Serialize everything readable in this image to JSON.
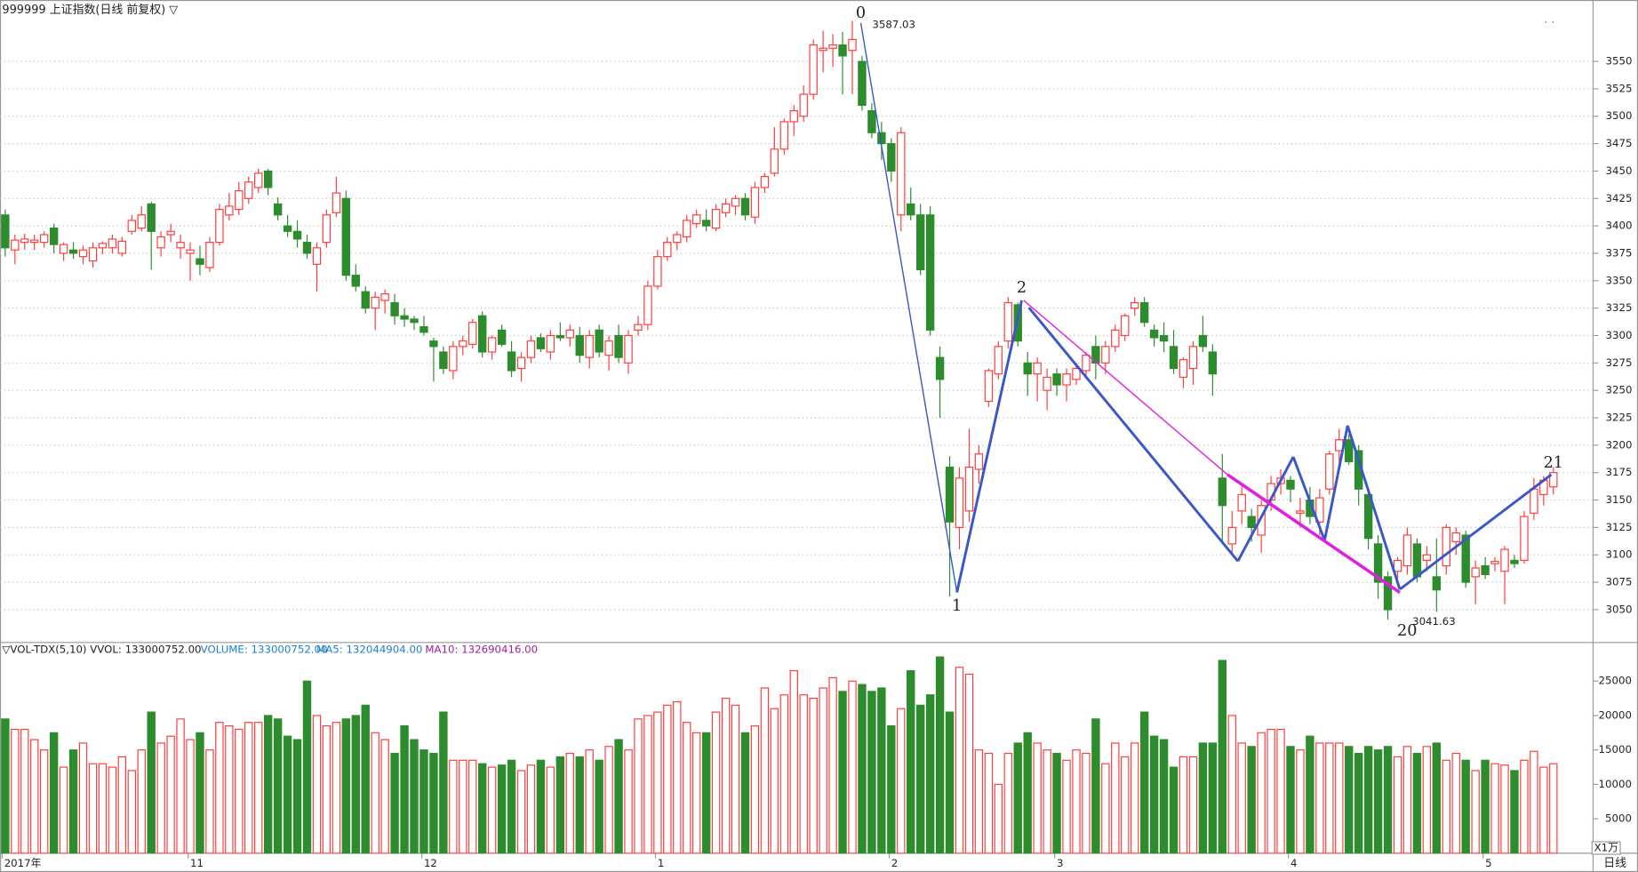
{
  "chart_data": [
    {
      "type": "candlestick",
      "title": "999999 上证指数(日线 前复权) ▽",
      "up_color": "#ff3b3b",
      "down_color": "#2d8c2d",
      "ylim": [
        3021,
        3606
      ],
      "yticks": [
        3050,
        3075,
        3100,
        3125,
        3150,
        3175,
        3200,
        3225,
        3250,
        3275,
        3300,
        3325,
        3350,
        3375,
        3400,
        3425,
        3450,
        3475,
        3500,
        3525,
        3550
      ],
      "grid": true,
      "annotations": {
        "wave_labels": [
          "0",
          "1",
          "2",
          "20",
          "21"
        ],
        "high": 3587.03,
        "low": 3041.63
      },
      "period_label": "日线",
      "categories": [
        "2017年",
        null,
        null,
        null,
        null,
        null,
        null,
        null,
        null,
        null,
        null,
        null,
        null,
        null,
        null,
        null,
        null,
        null,
        null,
        "11",
        null,
        null,
        null,
        null,
        null,
        null,
        null,
        null,
        null,
        null,
        null,
        null,
        null,
        null,
        null,
        null,
        null,
        null,
        null,
        null,
        null,
        null,
        null,
        "12",
        null,
        null,
        null,
        null,
        null,
        null,
        null,
        null,
        null,
        null,
        null,
        null,
        null,
        null,
        null,
        null,
        null,
        null,
        null,
        null,
        null,
        null,
        null,
        "1",
        null,
        null,
        null,
        null,
        null,
        null,
        null,
        null,
        null,
        null,
        null,
        null,
        null,
        null,
        null,
        null,
        null,
        null,
        null,
        null,
        null,
        null,
        null,
        "2",
        null,
        null,
        null,
        null,
        null,
        null,
        null,
        null,
        null,
        null,
        null,
        null,
        null,
        null,
        null,
        null,
        "3",
        null,
        null,
        null,
        null,
        null,
        null,
        null,
        null,
        null,
        null,
        null,
        null,
        null,
        null,
        null,
        null,
        null,
        null,
        null,
        null,
        null,
        null,
        null,
        "4",
        null,
        null,
        null,
        null,
        null,
        null,
        null,
        null,
        null,
        null,
        null,
        null,
        null,
        null,
        null,
        null,
        null,
        null,
        null,
        "5",
        null,
        null,
        null,
        null,
        null,
        null,
        null
      ],
      "values": [
        [
          3410,
          3415,
          3372,
          3380
        ],
        [
          3378,
          3392,
          3365,
          3387
        ],
        [
          3385,
          3393,
          3378,
          3388
        ],
        [
          3385,
          3392,
          3378,
          3387
        ],
        [
          3385,
          3395,
          3380,
          3392
        ],
        [
          3398,
          3402,
          3375,
          3383
        ],
        [
          3375,
          3385,
          3368,
          3383
        ],
        [
          3378,
          3385,
          3370,
          3375
        ],
        [
          3372,
          3382,
          3365,
          3378
        ],
        [
          3368,
          3385,
          3362,
          3380
        ],
        [
          3380,
          3386,
          3374,
          3384
        ],
        [
          3380,
          3392,
          3375,
          3388
        ],
        [
          3375,
          3390,
          3372,
          3386
        ],
        [
          3395,
          3410,
          3392,
          3405
        ],
        [
          3398,
          3418,
          3395,
          3410
        ],
        [
          3420,
          3422,
          3360,
          3395
        ],
        [
          3380,
          3395,
          3372,
          3390
        ],
        [
          3392,
          3402,
          3385,
          3395
        ],
        [
          3380,
          3392,
          3370,
          3385
        ],
        [
          3375,
          3385,
          3350,
          3378
        ],
        [
          3370,
          3382,
          3355,
          3365
        ],
        [
          3362,
          3390,
          3358,
          3385
        ],
        [
          3385,
          3420,
          3382,
          3415
        ],
        [
          3410,
          3430,
          3405,
          3418
        ],
        [
          3415,
          3440,
          3410,
          3432
        ],
        [
          3425,
          3445,
          3420,
          3440
        ],
        [
          3435,
          3452,
          3430,
          3448
        ],
        [
          3450,
          3452,
          3428,
          3435
        ],
        [
          3420,
          3426,
          3405,
          3410
        ],
        [
          3400,
          3410,
          3390,
          3395
        ],
        [
          3395,
          3405,
          3380,
          3388
        ],
        [
          3385,
          3392,
          3370,
          3375
        ],
        [
          3365,
          3385,
          3340,
          3380
        ],
        [
          3385,
          3415,
          3380,
          3410
        ],
        [
          3412,
          3445,
          3408,
          3430
        ],
        [
          3425,
          3432,
          3350,
          3355
        ],
        [
          3355,
          3365,
          3340,
          3345
        ],
        [
          3340,
          3345,
          3320,
          3325
        ],
        [
          3325,
          3340,
          3305,
          3335
        ],
        [
          3332,
          3342,
          3320,
          3338
        ],
        [
          3330,
          3338,
          3310,
          3318
        ],
        [
          3318,
          3325,
          3308,
          3315
        ],
        [
          3315,
          3318,
          3305,
          3312
        ],
        [
          3308,
          3318,
          3300,
          3303
        ],
        [
          3295,
          3298,
          3258,
          3290
        ],
        [
          3285,
          3290,
          3265,
          3270
        ],
        [
          3268,
          3295,
          3260,
          3290
        ],
        [
          3290,
          3300,
          3282,
          3295
        ],
        [
          3292,
          3315,
          3288,
          3312
        ],
        [
          3318,
          3322,
          3280,
          3285
        ],
        [
          3285,
          3300,
          3278,
          3298
        ],
        [
          3305,
          3310,
          3290,
          3292
        ],
        [
          3285,
          3295,
          3262,
          3268
        ],
        [
          3270,
          3285,
          3258,
          3280
        ],
        [
          3280,
          3300,
          3275,
          3295
        ],
        [
          3298,
          3302,
          3285,
          3288
        ],
        [
          3285,
          3305,
          3278,
          3300
        ],
        [
          3300,
          3312,
          3295,
          3298
        ],
        [
          3298,
          3310,
          3290,
          3305
        ],
        [
          3300,
          3308,
          3275,
          3282
        ],
        [
          3280,
          3305,
          3270,
          3300
        ],
        [
          3305,
          3310,
          3280,
          3285
        ],
        [
          3282,
          3300,
          3268,
          3295
        ],
        [
          3300,
          3310,
          3275,
          3280
        ],
        [
          3275,
          3305,
          3265,
          3300
        ],
        [
          3305,
          3318,
          3300,
          3310
        ],
        [
          3310,
          3350,
          3305,
          3345
        ],
        [
          3345,
          3378,
          3342,
          3372
        ],
        [
          3372,
          3390,
          3368,
          3385
        ],
        [
          3385,
          3395,
          3378,
          3392
        ],
        [
          3390,
          3410,
          3385,
          3405
        ],
        [
          3402,
          3415,
          3398,
          3410
        ],
        [
          3405,
          3415,
          3395,
          3400
        ],
        [
          3398,
          3420,
          3395,
          3415
        ],
        [
          3412,
          3425,
          3408,
          3420
        ],
        [
          3418,
          3428,
          3410,
          3425
        ],
        [
          3425,
          3430,
          3405,
          3410
        ],
        [
          3408,
          3440,
          3402,
          3435
        ],
        [
          3435,
          3448,
          3430,
          3445
        ],
        [
          3448,
          3490,
          3445,
          3470
        ],
        [
          3470,
          3498,
          3465,
          3495
        ],
        [
          3495,
          3510,
          3482,
          3505
        ],
        [
          3500,
          3528,
          3495,
          3520
        ],
        [
          3520,
          3570,
          3515,
          3565
        ],
        [
          3560,
          3578,
          3540,
          3562
        ],
        [
          3562,
          3575,
          3545,
          3565
        ],
        [
          3565,
          3577,
          3520,
          3555
        ],
        [
          3560,
          3587,
          3520,
          3570
        ],
        [
          3550,
          3555,
          3505,
          3510
        ],
        [
          3505,
          3512,
          3480,
          3485
        ],
        [
          3485,
          3495,
          3460,
          3475
        ],
        [
          3475,
          3480,
          3440,
          3450
        ],
        [
          3410,
          3490,
          3395,
          3485
        ],
        [
          3420,
          3435,
          3405,
          3410
        ],
        [
          3410,
          3420,
          3355,
          3360
        ],
        [
          3410,
          3418,
          3300,
          3305
        ],
        [
          3280,
          3290,
          3225,
          3260
        ],
        [
          3180,
          3190,
          3062,
          3130
        ],
        [
          3125,
          3180,
          3105,
          3170
        ],
        [
          3140,
          3215,
          3130,
          3180
        ],
        [
          3178,
          3200,
          3165,
          3192
        ],
        [
          3240,
          3270,
          3235,
          3268
        ],
        [
          3265,
          3295,
          3260,
          3290
        ],
        [
          3295,
          3335,
          3288,
          3330
        ],
        [
          3328,
          3330,
          3290,
          3295
        ],
        [
          3275,
          3285,
          3245,
          3265
        ],
        [
          3265,
          3280,
          3240,
          3275
        ],
        [
          3250,
          3270,
          3232,
          3262
        ],
        [
          3265,
          3270,
          3245,
          3255
        ],
        [
          3255,
          3270,
          3240,
          3265
        ],
        [
          3260,
          3275,
          3255,
          3270
        ],
        [
          3268,
          3285,
          3262,
          3282
        ],
        [
          3290,
          3300,
          3260,
          3275
        ],
        [
          3275,
          3295,
          3265,
          3290
        ],
        [
          3290,
          3310,
          3285,
          3305
        ],
        [
          3300,
          3320,
          3295,
          3318
        ],
        [
          3325,
          3335,
          3318,
          3330
        ],
        [
          3330,
          3335,
          3308,
          3312
        ],
        [
          3305,
          3310,
          3290,
          3298
        ],
        [
          3300,
          3312,
          3285,
          3295
        ],
        [
          3290,
          3305,
          3265,
          3270
        ],
        [
          3262,
          3280,
          3252,
          3278
        ],
        [
          3270,
          3295,
          3255,
          3290
        ],
        [
          3300,
          3318,
          3285,
          3290
        ],
        [
          3285,
          3292,
          3245,
          3265
        ],
        [
          3170,
          3192,
          3110,
          3145
        ],
        [
          3110,
          3140,
          3100,
          3125
        ],
        [
          3140,
          3162,
          3128,
          3155
        ],
        [
          3135,
          3142,
          3112,
          3125
        ],
        [
          3118,
          3150,
          3102,
          3145
        ],
        [
          3150,
          3172,
          3140,
          3165
        ],
        [
          3165,
          3178,
          3155,
          3170
        ],
        [
          3168,
          3172,
          3148,
          3160
        ],
        [
          3138,
          3152,
          3125,
          3140
        ],
        [
          3150,
          3162,
          3128,
          3135
        ],
        [
          3130,
          3160,
          3118,
          3152
        ],
        [
          3160,
          3195,
          3155,
          3192
        ],
        [
          3195,
          3215,
          3185,
          3205
        ],
        [
          3205,
          3210,
          3182,
          3185
        ],
        [
          3195,
          3200,
          3145,
          3160
        ],
        [
          3155,
          3160,
          3105,
          3115
        ],
        [
          3110,
          3118,
          3060,
          3075
        ],
        [
          3080,
          3085,
          3041,
          3050
        ],
        [
          3085,
          3098,
          3075,
          3095
        ],
        [
          3090,
          3125,
          3082,
          3118
        ],
        [
          3110,
          3115,
          3075,
          3080
        ],
        [
          3095,
          3108,
          3085,
          3100
        ],
        [
          3080,
          3115,
          3048,
          3068
        ],
        [
          3090,
          3128,
          3082,
          3125
        ],
        [
          3112,
          3125,
          3100,
          3120
        ],
        [
          3118,
          3122,
          3070,
          3075
        ],
        [
          3080,
          3095,
          3055,
          3088
        ],
        [
          3090,
          3098,
          3078,
          3082
        ],
        [
          3092,
          3098,
          3085,
          3094
        ],
        [
          3085,
          3108,
          3055,
          3105
        ],
        [
          3095,
          3100,
          3088,
          3092
        ],
        [
          3095,
          3140,
          3092,
          3135
        ],
        [
          3138,
          3170,
          3132,
          3160
        ],
        [
          3155,
          3172,
          3145,
          3168
        ],
        [
          3162,
          3180,
          3155,
          3175
        ]
      ]
    },
    {
      "type": "bar",
      "title": "▽VOL-TDX(5,10) VVOL: 133000752.00",
      "volume_text": "VOLUME: 133000752.00",
      "ma5_text": "MA5: 132044904.00",
      "ma10_text": "MA10: 132690416.00",
      "unit": "X1万",
      "ylim": [
        0,
        30450
      ],
      "yticks": [
        5000,
        10000,
        15000,
        20000,
        25000
      ],
      "values": [
        19500,
        18000,
        18000,
        16500,
        15000,
        17500,
        12500,
        15000,
        16000,
        13000,
        13000,
        12500,
        14000,
        12000,
        15000,
        20500,
        16000,
        17000,
        19500,
        16500,
        17500,
        15000,
        19000,
        18500,
        18000,
        19000,
        19000,
        20000,
        19500,
        17000,
        16500,
        25000,
        20000,
        18500,
        19000,
        19500,
        20000,
        21500,
        17500,
        16500,
        14500,
        18500,
        16500,
        15000,
        14500,
        20500,
        13500,
        13500,
        13500,
        13000,
        12500,
        12800,
        13500,
        12000,
        12800,
        13500,
        12500,
        14000,
        14500,
        14000,
        15000,
        13500,
        15500,
        16500,
        15000,
        19500,
        20000,
        20500,
        21500,
        22000,
        19000,
        17500,
        17500,
        20500,
        22500,
        21500,
        17500,
        18500,
        24000,
        21000,
        23000,
        26500,
        23000,
        22500,
        24000,
        25500,
        23500,
        25000,
        24500,
        23500,
        24000,
        18500,
        21000,
        26500,
        21500,
        23000,
        28500,
        20500,
        27000,
        26000,
        15000,
        14500,
        10000,
        14500,
        16000,
        17500,
        16000,
        15000,
        14500,
        13500,
        15000,
        14500,
        19500,
        13000,
        16000,
        14000,
        16000,
        20500,
        17000,
        16500,
        12500,
        14000,
        14000,
        16000,
        16000,
        28000,
        20000,
        16000,
        15500,
        17500,
        18000,
        18000,
        15500,
        15000,
        17000,
        16000,
        16000,
        16000,
        15500,
        14500,
        15500,
        15000,
        15500,
        14000,
        15500,
        14500,
        15500,
        16000,
        13500,
        14500,
        13500,
        12000,
        13500,
        13000,
        12800,
        12000,
        13500,
        14800,
        12500,
        13000
      ]
    }
  ]
}
